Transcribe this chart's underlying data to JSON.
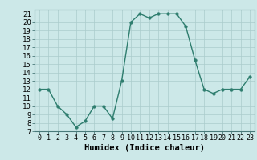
{
  "x": [
    0,
    1,
    2,
    3,
    4,
    5,
    6,
    7,
    8,
    9,
    10,
    11,
    12,
    13,
    14,
    15,
    16,
    17,
    18,
    19,
    20,
    21,
    22,
    23
  ],
  "y": [
    12,
    12,
    10,
    9,
    7.5,
    8.2,
    10,
    10,
    8.5,
    13,
    20,
    21,
    20.5,
    21,
    21,
    21,
    19.5,
    15.5,
    12,
    11.5,
    12,
    12,
    12,
    13.5
  ],
  "line_color": "#2e7d6e",
  "marker_color": "#2e7d6e",
  "bg_color": "#cce8e8",
  "grid_color": "#aacccc",
  "xlabel": "Humidex (Indice chaleur)",
  "ylim_min": 7,
  "ylim_max": 21.5,
  "xlim_min": -0.5,
  "xlim_max": 23.5,
  "yticks": [
    7,
    8,
    9,
    10,
    11,
    12,
    13,
    14,
    15,
    16,
    17,
    18,
    19,
    20,
    21
  ],
  "xticks": [
    0,
    1,
    2,
    3,
    4,
    5,
    6,
    7,
    8,
    9,
    10,
    11,
    12,
    13,
    14,
    15,
    16,
    17,
    18,
    19,
    20,
    21,
    22,
    23
  ],
  "xtick_labels": [
    "0",
    "1",
    "2",
    "3",
    "4",
    "5",
    "6",
    "7",
    "8",
    "9",
    "10",
    "11",
    "12",
    "13",
    "14",
    "15",
    "16",
    "17",
    "18",
    "19",
    "20",
    "21",
    "22",
    "23"
  ],
  "ytick_fontsize": 6.5,
  "xtick_fontsize": 6,
  "xlabel_fontsize": 7.5,
  "linewidth": 1.0,
  "markersize": 2.5
}
